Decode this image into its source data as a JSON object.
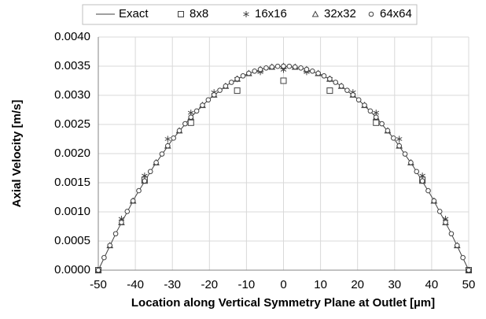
{
  "chart_data": {
    "type": "scatter",
    "x_label": "Location along Vertical Symmetry Plane at Outlet [µm]",
    "y_label": "Axial Velocity [m/s]",
    "xlim": [
      -50,
      50
    ],
    "xticks": [
      -50,
      -40,
      -30,
      -20,
      -10,
      0,
      10,
      20,
      30,
      40,
      50
    ],
    "ylim": [
      0,
      0.004
    ],
    "yticks": [
      {
        "value": 0,
        "label": "0.0000"
      },
      {
        "value": 0.0005,
        "label": "0.0005"
      },
      {
        "value": 0.001,
        "label": "0.0010"
      },
      {
        "value": 0.0015,
        "label": "0.0015"
      },
      {
        "value": 0.002,
        "label": "0.0020"
      },
      {
        "value": 0.0025,
        "label": "0.0025"
      },
      {
        "value": 0.003,
        "label": "0.0030"
      },
      {
        "value": 0.0035,
        "label": "0.0035"
      },
      {
        "value": 0.004,
        "label": "0.0040"
      }
    ],
    "grid": true,
    "legend": "top",
    "series": [
      {
        "name": "Exact",
        "color": "#404040",
        "marker": "line",
        "x": [
          -50,
          -45,
          -40,
          -35,
          -30,
          -25,
          -20,
          -15,
          -10,
          -5,
          0,
          5,
          10,
          15,
          20,
          25,
          30,
          35,
          40,
          45,
          50
        ],
        "values": [
          0,
          0.000665,
          0.00126,
          0.001785,
          0.00224,
          0.002625,
          0.00294,
          0.003185,
          0.00336,
          0.003465,
          0.0035,
          0.003465,
          0.00336,
          0.003185,
          0.00294,
          0.002625,
          0.00224,
          0.001785,
          0.00126,
          0.000665,
          0
        ]
      },
      {
        "name": "8x8",
        "color": "#404040",
        "marker": "square",
        "x": [
          -50,
          -37.5,
          -25,
          -12.5,
          0,
          12.5,
          25,
          37.5,
          50
        ],
        "values": [
          0,
          0.00155,
          0.00253,
          0.00308,
          0.00325,
          0.00308,
          0.00253,
          0.00155,
          0
        ]
      },
      {
        "name": "16x16",
        "color": "#404040",
        "marker": "asterisk",
        "x": [
          -50,
          -43.75,
          -37.5,
          -31.25,
          -25,
          -18.75,
          -12.5,
          -6.25,
          0,
          6.25,
          12.5,
          18.75,
          25,
          31.25,
          37.5,
          43.75,
          50
        ],
        "values": [
          0,
          0.00088,
          0.00162,
          0.00225,
          0.0027,
          0.00305,
          0.00328,
          0.0034,
          0.00344,
          0.0034,
          0.00328,
          0.00305,
          0.0027,
          0.00225,
          0.00162,
          0.00088,
          0
        ]
      },
      {
        "name": "32x32",
        "color": "#404040",
        "marker": "triangle",
        "x": [
          -50,
          -46.875,
          -43.75,
          -40.625,
          -37.5,
          -34.375,
          -31.25,
          -28.125,
          -25,
          -21.875,
          -18.75,
          -15.625,
          -12.5,
          -9.375,
          -6.25,
          -3.125,
          0,
          3.125,
          6.25,
          9.375,
          12.5,
          15.625,
          18.75,
          21.875,
          25,
          28.125,
          31.25,
          34.375,
          37.5,
          40.625,
          43.75,
          46.875,
          50
        ],
        "values": [
          0,
          0.000424,
          0.00082,
          0.001189,
          0.001531,
          0.001846,
          0.002133,
          0.002393,
          0.002625,
          0.00283,
          0.003008,
          0.003158,
          0.003281,
          0.003377,
          0.003445,
          0.003486,
          0.0035,
          0.003486,
          0.003445,
          0.003377,
          0.003281,
          0.003158,
          0.003008,
          0.00283,
          0.002625,
          0.002393,
          0.002133,
          0.001846,
          0.001531,
          0.001189,
          0.00082,
          0.000424,
          0
        ]
      },
      {
        "name": "64x64",
        "color": "#404040",
        "marker": "circle",
        "x": [
          -50,
          -48.4375,
          -46.875,
          -45.3125,
          -43.75,
          -42.1875,
          -40.625,
          -39.0625,
          -37.5,
          -35.9375,
          -34.375,
          -32.8125,
          -31.25,
          -29.6875,
          -28.125,
          -26.5625,
          -25,
          -23.4375,
          -21.875,
          -20.3125,
          -18.75,
          -17.1875,
          -15.625,
          -14.0625,
          -12.5,
          -10.9375,
          -9.375,
          -7.8125,
          -6.25,
          -4.6875,
          -3.125,
          -1.5625,
          0,
          1.5625,
          3.125,
          4.6875,
          6.25,
          7.8125,
          9.375,
          10.9375,
          12.5,
          14.0625,
          15.625,
          17.1875,
          18.75,
          20.3125,
          21.875,
          23.4375,
          25,
          26.5625,
          28.125,
          29.6875,
          31.25,
          32.8125,
          34.375,
          35.9375,
          37.5,
          39.0625,
          40.625,
          42.1875,
          43.75,
          45.3125,
          46.875,
          48.4375,
          50
        ],
        "values": [
          0,
          0.000215,
          0.000424,
          0.000625,
          0.00082,
          0.001008,
          0.001189,
          0.001364,
          0.001531,
          0.001692,
          0.001846,
          0.001993,
          0.002133,
          0.002266,
          0.002393,
          0.002512,
          0.002625,
          0.002731,
          0.00283,
          0.002922,
          0.003008,
          0.003086,
          0.003158,
          0.003223,
          0.003281,
          0.003333,
          0.003377,
          0.003415,
          0.003445,
          0.003469,
          0.003486,
          0.003497,
          0.0035,
          0.003497,
          0.003486,
          0.003469,
          0.003445,
          0.003415,
          0.003377,
          0.003333,
          0.003281,
          0.003223,
          0.003158,
          0.003086,
          0.003008,
          0.002922,
          0.00283,
          0.002731,
          0.002625,
          0.002512,
          0.002393,
          0.002266,
          0.002133,
          0.001993,
          0.001846,
          0.001692,
          0.001531,
          0.001364,
          0.001189,
          0.001008,
          0.00082,
          0.000625,
          0.000424,
          0.000215,
          0
        ]
      }
    ]
  }
}
